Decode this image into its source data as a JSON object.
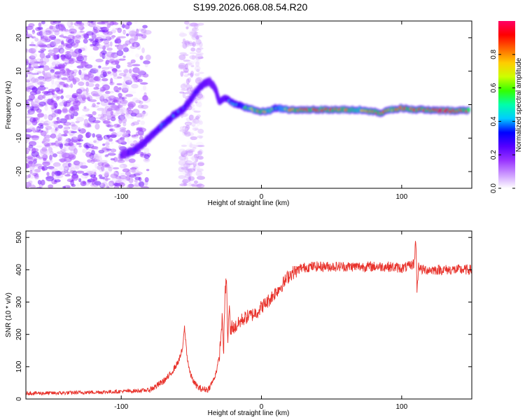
{
  "title": "S199.2026.068.08.54.R20",
  "chart_data": [
    {
      "type": "heatmap",
      "title": "S199.2026.068.08.54.R20",
      "xlabel": "Height of straight line (km)",
      "ylabel": "Frequency (Hz)",
      "xlim": [
        -168,
        150
      ],
      "ylim": [
        -25,
        25
      ],
      "xticks": [
        -100,
        0,
        100
      ],
      "yticks": [
        -20,
        -10,
        0,
        10,
        20
      ],
      "xtick_labels": [
        "-100",
        "0",
        "100"
      ],
      "ytick_labels": [
        "-20",
        "-10",
        "0",
        "10",
        "20"
      ],
      "noise_region_x": [
        -168,
        -80
      ],
      "noise_band_x": [
        -57,
        -43
      ],
      "ridge_x": [
        -100,
        -92,
        -85,
        -78,
        -70,
        -62,
        -55,
        -48,
        -42,
        -37,
        -33,
        -30,
        -26,
        -18,
        -10,
        -2,
        5,
        10,
        20,
        30,
        40,
        50,
        60,
        70,
        78,
        85,
        92,
        100,
        108,
        115,
        125,
        135,
        148
      ],
      "ridge_y": [
        -15,
        -14,
        -12,
        -9,
        -6,
        -3,
        -1,
        3,
        6,
        7,
        5,
        1,
        2,
        0,
        -1,
        -2,
        -2,
        -1,
        -1.5,
        -1.5,
        -1.5,
        -1.5,
        -1.5,
        -1.5,
        -2,
        -2.5,
        -1.5,
        -1,
        -1.5,
        -1.5,
        -1.8,
        -1.8,
        -1.8
      ],
      "ridge_amplitude": [
        0.25,
        0.3,
        0.35,
        0.35,
        0.4,
        0.4,
        0.35,
        0.35,
        0.35,
        0.3,
        0.3,
        0.35,
        0.35,
        0.45,
        0.55,
        0.8,
        0.7,
        0.5,
        0.75,
        0.9,
        0.95,
        0.9,
        0.8,
        0.7,
        0.8,
        0.9,
        0.75,
        0.85,
        0.9,
        0.9,
        0.95,
        0.9,
        0.9
      ],
      "colorbar": {
        "label": "Normalized spectral amplitude",
        "range": [
          0,
          1
        ],
        "ticks": [
          0.0,
          0.2,
          0.4,
          0.6,
          0.8
        ],
        "tick_labels": [
          "0.0",
          "0.2",
          "0.4",
          "0.6",
          "0.8"
        ],
        "colormap": [
          "#ffffff",
          "#cc99ff",
          "#9933ff",
          "#5500ff",
          "#0000ff",
          "#00ccff",
          "#00ffaa",
          "#33ff00",
          "#ccff00",
          "#ffcc00",
          "#ff6600",
          "#ff0000",
          "#ff0066"
        ]
      }
    },
    {
      "type": "line",
      "xlabel": "Height of straight line (km)",
      "ylabel": "SNR (10 * v/v)",
      "xlim": [
        -168,
        150
      ],
      "ylim": [
        0,
        520
      ],
      "xticks": [
        -100,
        0,
        100
      ],
      "yticks": [
        0,
        100,
        200,
        300,
        400,
        500
      ],
      "xtick_labels": [
        "-100",
        "0",
        "100"
      ],
      "ytick_labels": [
        "0",
        "100",
        "200",
        "300",
        "400",
        "500"
      ],
      "series": [
        {
          "name": "SNR",
          "color": "#e8312a",
          "x": [
            -168,
            -150,
            -130,
            -110,
            -90,
            -80,
            -75,
            -70,
            -66,
            -63,
            -60,
            -58,
            -56,
            -55,
            -54,
            -53,
            -51,
            -48,
            -45,
            -42,
            -38,
            -36,
            -34,
            -32,
            -30,
            -28,
            -27,
            -26,
            -25,
            -24,
            -23,
            -22,
            -21,
            -20,
            -18,
            -16,
            -14,
            -12,
            -10,
            -7,
            -3,
            0,
            4,
            8,
            12,
            16,
            20,
            24,
            28,
            35,
            50,
            70,
            90,
            100,
            105,
            109,
            110,
            111,
            112,
            114,
            120,
            135,
            150
          ],
          "y": [
            18,
            18,
            20,
            22,
            25,
            28,
            40,
            55,
            70,
            90,
            110,
            130,
            160,
            225,
            180,
            130,
            80,
            50,
            35,
            30,
            30,
            45,
            60,
            90,
            130,
            250,
            150,
            320,
            380,
            170,
            290,
            200,
            230,
            220,
            225,
            235,
            245,
            250,
            255,
            260,
            270,
            285,
            300,
            320,
            340,
            360,
            385,
            395,
            405,
            410,
            410,
            410,
            410,
            405,
            410,
            420,
            500,
            330,
            415,
            400,
            400,
            400,
            400
          ]
        }
      ]
    }
  ]
}
